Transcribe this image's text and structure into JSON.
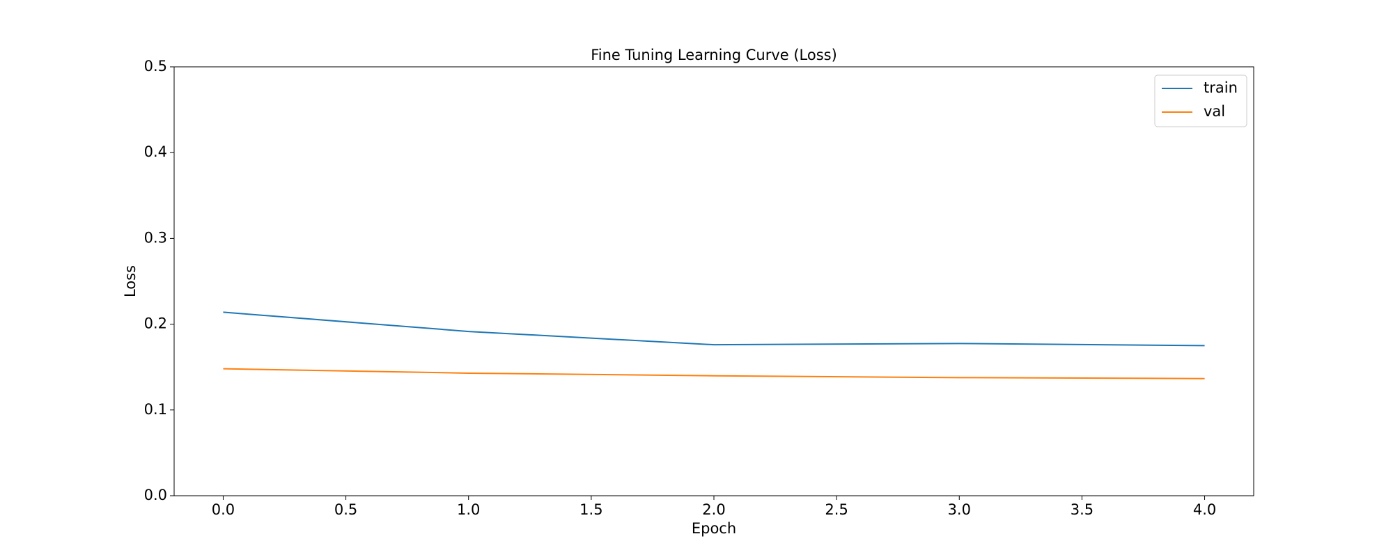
{
  "chart_data": {
    "type": "line",
    "title": "Fine Tuning Learning Curve (Loss)",
    "x_label": "Epoch",
    "y_label": "Loss",
    "x": [
      0,
      1,
      2,
      3,
      4
    ],
    "series": [
      {
        "name": "train",
        "color": "#1f77b4",
        "values": [
          0.214,
          0.1915,
          0.176,
          0.1775,
          0.175
        ]
      },
      {
        "name": "val",
        "color": "#ff7f0e",
        "values": [
          0.148,
          0.1429,
          0.1398,
          0.1377,
          0.1366
        ]
      }
    ],
    "xlim": [
      -0.2,
      4.2
    ],
    "xticks": [
      {
        "value": 0,
        "label": "0.0"
      },
      {
        "value": 0.5,
        "label": "0.5"
      },
      {
        "value": 1,
        "label": "1.0"
      },
      {
        "value": 1.5,
        "label": "1.5"
      },
      {
        "value": 2,
        "label": "2.0"
      },
      {
        "value": 2.5,
        "label": "2.5"
      },
      {
        "value": 3,
        "label": "3.0"
      },
      {
        "value": 3.5,
        "label": "3.5"
      },
      {
        "value": 4,
        "label": "4.0"
      }
    ],
    "ylim": [
      0,
      0.5
    ],
    "yticks": [
      {
        "value": 0,
        "label": "0.0"
      },
      0.1,
      0.2,
      0.3,
      0.4,
      0.5
    ],
    "grid": false,
    "legend": "upper right"
  }
}
